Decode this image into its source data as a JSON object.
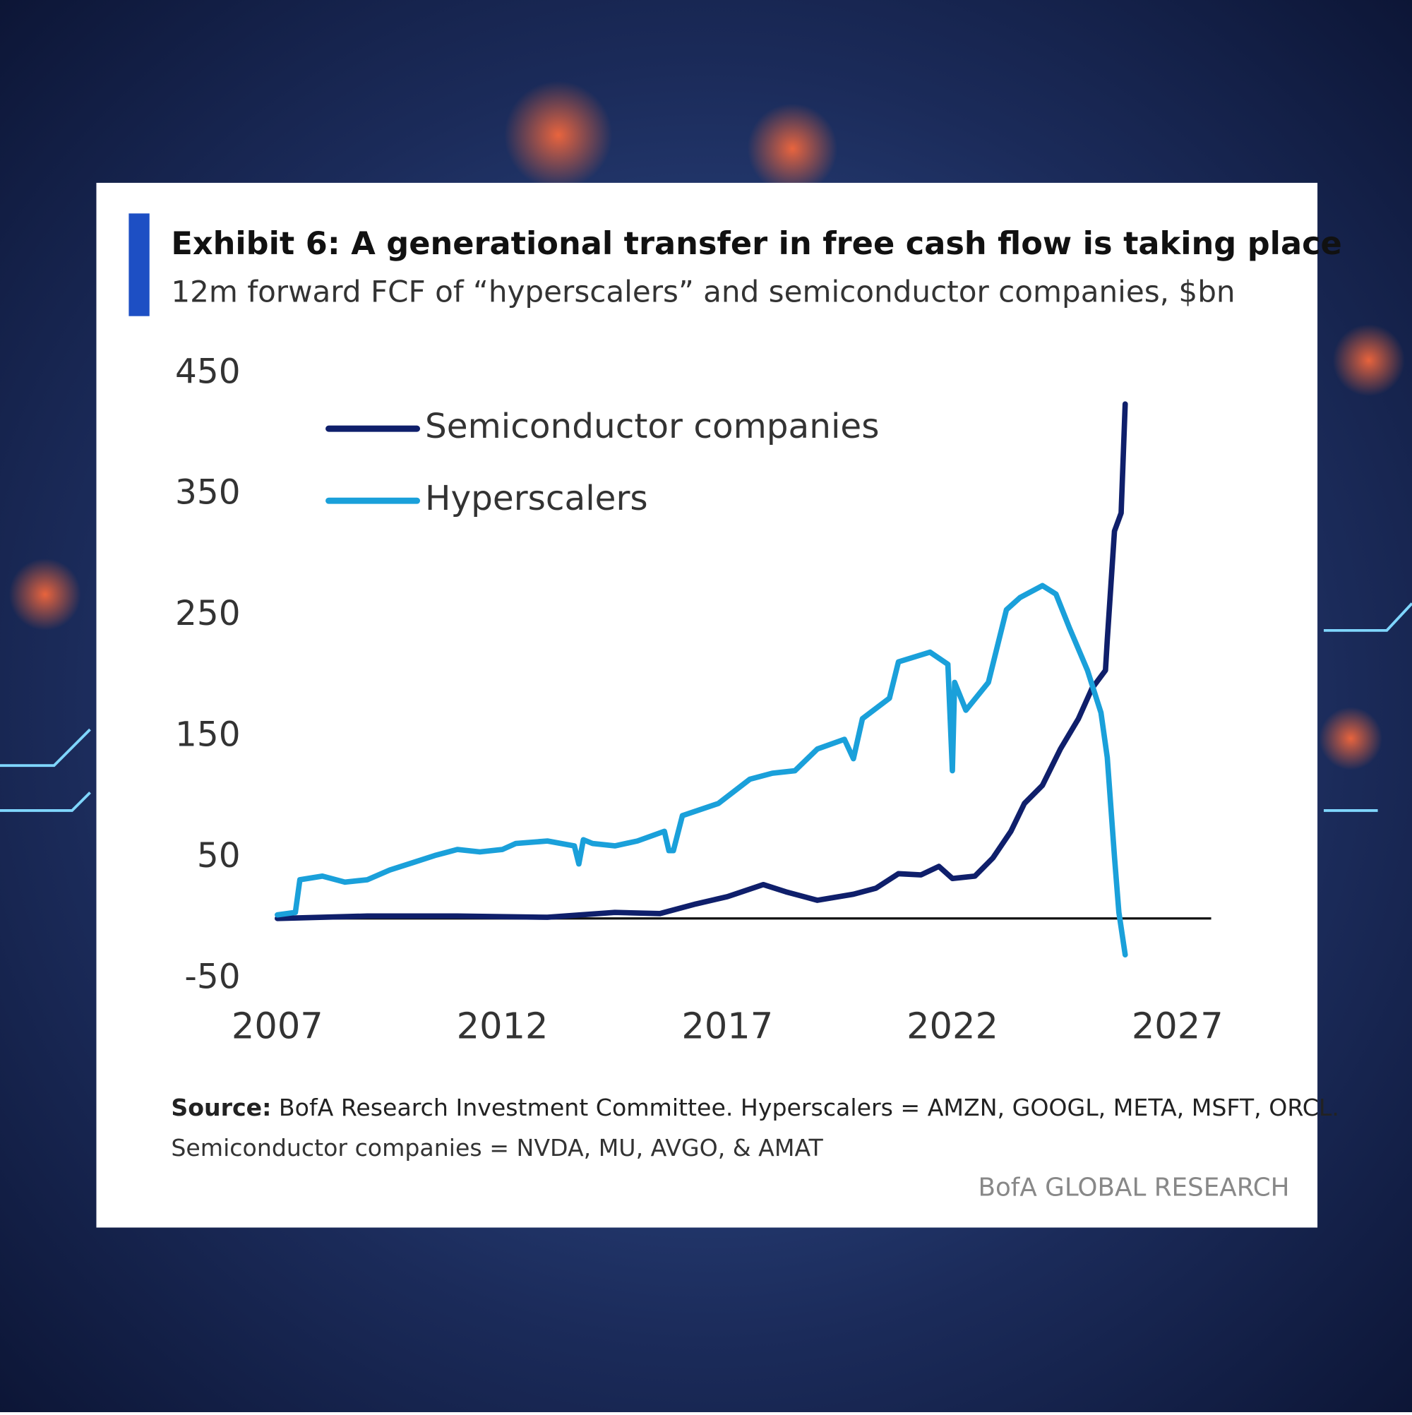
{
  "chart_data": {
    "type": "line",
    "title": "Exhibit 6: A generational transfer in free cash flow is taking place",
    "subtitle": "12m forward FCF of “hyperscalers” and semiconductor companies, $bn",
    "xlim": [
      2007,
      2027.75
    ],
    "xticks": [
      2007,
      2012,
      2017,
      2022,
      2027
    ],
    "ylim": [
      -50,
      450
    ],
    "yticks": [
      -50,
      50,
      150,
      250,
      350,
      450
    ],
    "zero_line": true,
    "series": [
      {
        "name": "Semiconductor companies",
        "color": "#0f1f6b",
        "x": [
          2007,
          2009,
          2011,
          2013,
          2014.5,
          2015.5,
          2016.3,
          2017,
          2017.8,
          2018.3,
          2019,
          2019.8,
          2020.3,
          2020.8,
          2021.3,
          2021.7,
          2022,
          2022.5,
          2022.9,
          2023.3,
          2023.6,
          2024,
          2024.4,
          2024.8,
          2025.1,
          2025.4,
          2025.44,
          2025.6,
          2025.75,
          2025.84
        ],
        "values": [
          0,
          2,
          2,
          1,
          5,
          4,
          12,
          18,
          28,
          22,
          15,
          20,
          25,
          37,
          36,
          43,
          33,
          35,
          50,
          72,
          95,
          110,
          140,
          165,
          190,
          205,
          230,
          320,
          335,
          425
        ]
      },
      {
        "name": "Hyperscalers",
        "color": "#1aa0da",
        "x": [
          2007,
          2007.4,
          2007.5,
          2008,
          2008.5,
          2009,
          2009.5,
          2010,
          2010.5,
          2011,
          2011.5,
          2012,
          2012.3,
          2013,
          2013.6,
          2013.7,
          2013.8,
          2014,
          2014.5,
          2015,
          2015.6,
          2015.7,
          2015.8,
          2016,
          2016.8,
          2017.5,
          2018,
          2018.5,
          2019,
          2019.6,
          2019.8,
          2020,
          2020.6,
          2020.8,
          2021.5,
          2021.9,
          2022,
          2022.05,
          2022.3,
          2022.8,
          2023.2,
          2023.5,
          2024,
          2024.3,
          2024.6,
          2025,
          2025.3,
          2025.44,
          2025.6,
          2025.7,
          2025.84
        ],
        "values": [
          3,
          5,
          32,
          35,
          30,
          32,
          40,
          46,
          52,
          57,
          55,
          57,
          62,
          64,
          60,
          45,
          65,
          62,
          60,
          64,
          72,
          56,
          56,
          85,
          95,
          115,
          120,
          122,
          140,
          148,
          132,
          165,
          182,
          212,
          220,
          210,
          122,
          195,
          172,
          195,
          255,
          265,
          275,
          268,
          240,
          205,
          170,
          133,
          51,
          5,
          -30
        ]
      }
    ],
    "source_label": "Source:",
    "source_lines": [
      "BofA Research Investment Committee. Hyperscalers = AMZN, GOOGL, META, MSFT, ORCL.",
      "Semiconductor companies = NVDA, MU, AVGO, & AMAT"
    ],
    "brand": "BofA GLOBAL RESEARCH"
  }
}
